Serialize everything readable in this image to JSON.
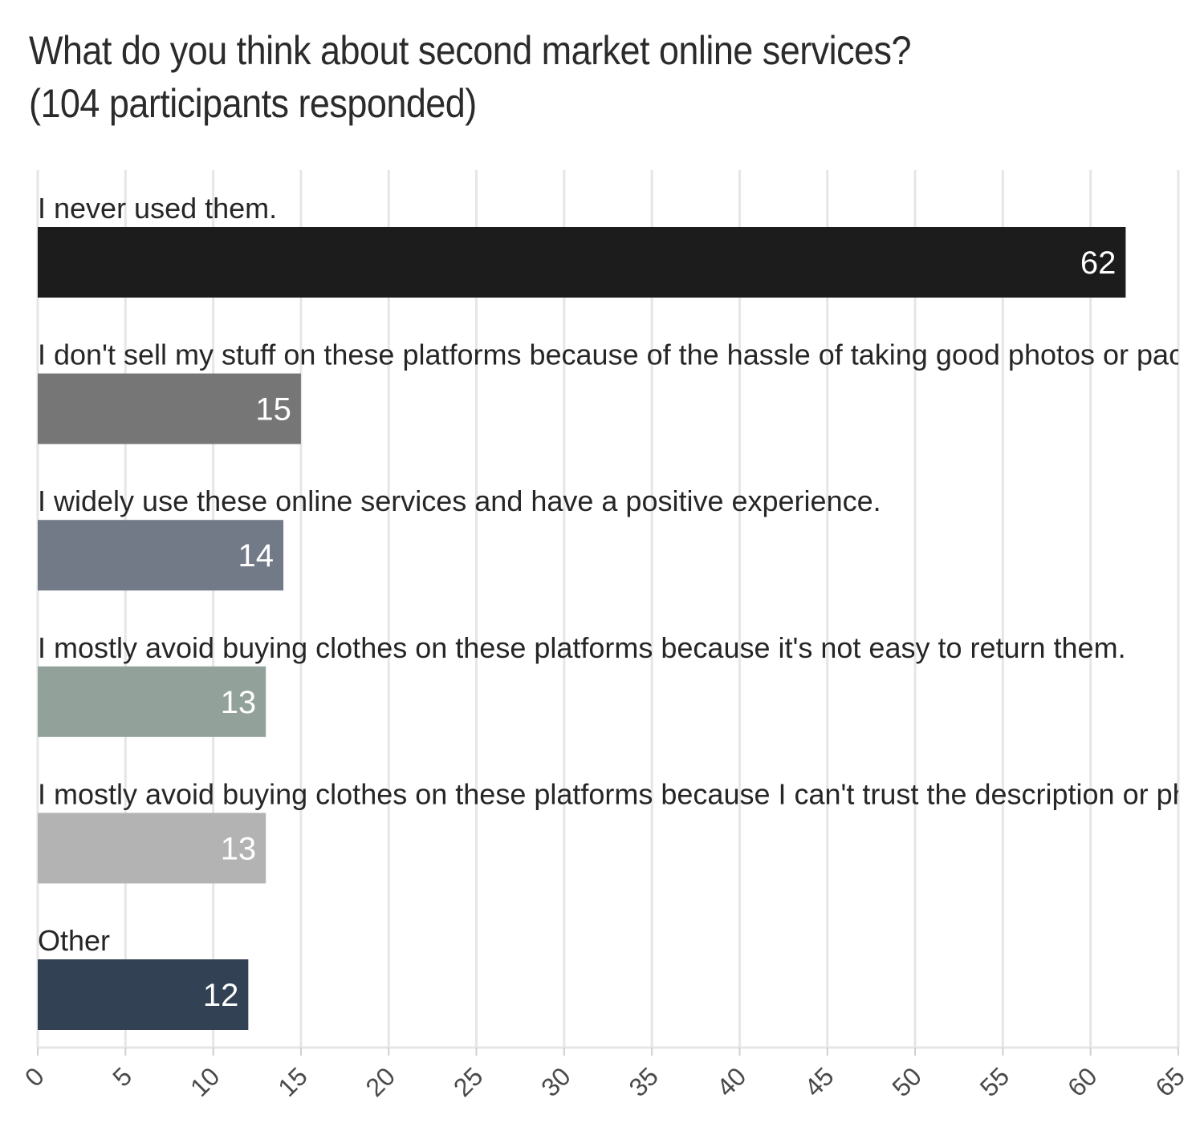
{
  "chart_data": {
    "type": "bar",
    "orientation": "horizontal",
    "title_lines": [
      "What do you think about second market online services?",
      "(104 participants responded)"
    ],
    "xlabel": "",
    "ylabel": "",
    "xlim": [
      0,
      65
    ],
    "ticks": [
      0,
      5,
      10,
      15,
      20,
      25,
      30,
      35,
      40,
      45,
      50,
      55,
      60,
      65
    ],
    "grid": true,
    "legend": "none",
    "categories": [
      "I never used them.",
      "I don't sell my stuff on these platforms because of the hassle of taking good photos or packagi",
      "I widely use these online services and have a positive experience.",
      "I mostly avoid buying clothes on these platforms because it's not easy to return them.",
      "I mostly avoid buying clothes on these platforms because I can't trust the description or photos",
      "Other"
    ],
    "values": [
      62,
      15,
      14,
      13,
      13,
      12
    ],
    "colors": [
      "#1c1c1c",
      "#767676",
      "#727a87",
      "#92a29a",
      "#b3b3b3",
      "#334155"
    ]
  }
}
